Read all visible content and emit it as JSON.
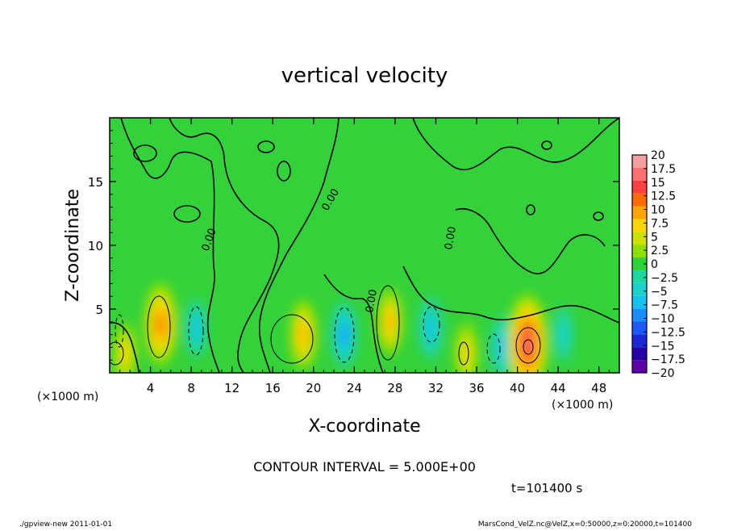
{
  "chart_data": {
    "type": "heatmap",
    "title": "vertical velocity",
    "xlabel": "X-coordinate",
    "ylabel": "Z-coordinate",
    "x_unit_left": "(×1000 m)",
    "x_unit_right": "(×1000 m)",
    "xlim": [
      0,
      50
    ],
    "ylim": [
      0,
      20
    ],
    "x_ticks": [
      "4",
      "8",
      "12",
      "16",
      "20",
      "24",
      "28",
      "32",
      "36",
      "40",
      "44",
      "48"
    ],
    "y_ticks": [
      "5",
      "10",
      "15"
    ],
    "contour_label": "0.00",
    "contour_interval_text": "CONTOUR INTERVAL = 5.000E+00",
    "time_text": "t=101400 s",
    "colorbar": {
      "labels": [
        "20",
        "17.5",
        "15",
        "12.5",
        "10",
        "7.5",
        "5",
        "2.5",
        "0",
        "−2.5",
        "−5",
        "−7.5",
        "−10",
        "−12.5",
        "−15",
        "−17.5",
        "−20"
      ],
      "colors": [
        "#f4a0a0",
        "#ff7070",
        "#ff4040",
        "#ff6a00",
        "#ffa500",
        "#ffd700",
        "#cde000",
        "#8fe000",
        "#2cd43a",
        "#20d6a0",
        "#18d2cc",
        "#18c2f0",
        "#1a8cff",
        "#1e58f8",
        "#1a28d8",
        "#2800a8",
        "#6000a8"
      ]
    },
    "features": [
      {
        "x": 1.5,
        "z": 1.5,
        "w": 7.0
      },
      {
        "x": 5.0,
        "z": 3.8,
        "w": 12.0
      },
      {
        "x": 8.5,
        "z": 3.5,
        "w": -6.0
      },
      {
        "x": 19.0,
        "z": 3.0,
        "w": 9.0
      },
      {
        "x": 23.0,
        "z": 3.0,
        "w": -8.0
      },
      {
        "x": 27.5,
        "z": 4.0,
        "w": 8.0
      },
      {
        "x": 31.5,
        "z": 3.5,
        "w": -7.0
      },
      {
        "x": 35.0,
        "z": 1.5,
        "w": 7.0
      },
      {
        "x": 38.5,
        "z": 2.0,
        "w": -7.0
      },
      {
        "x": 41.0,
        "z": 2.3,
        "w": 16.0
      },
      {
        "x": 44.5,
        "z": 3.0,
        "w": -5.0
      }
    ],
    "footer_left": "./gpview-new   2011-01-01",
    "footer_right": "MarsCond_VelZ.nc@VelZ,x=0:50000,z=0:20000,t=101400"
  }
}
